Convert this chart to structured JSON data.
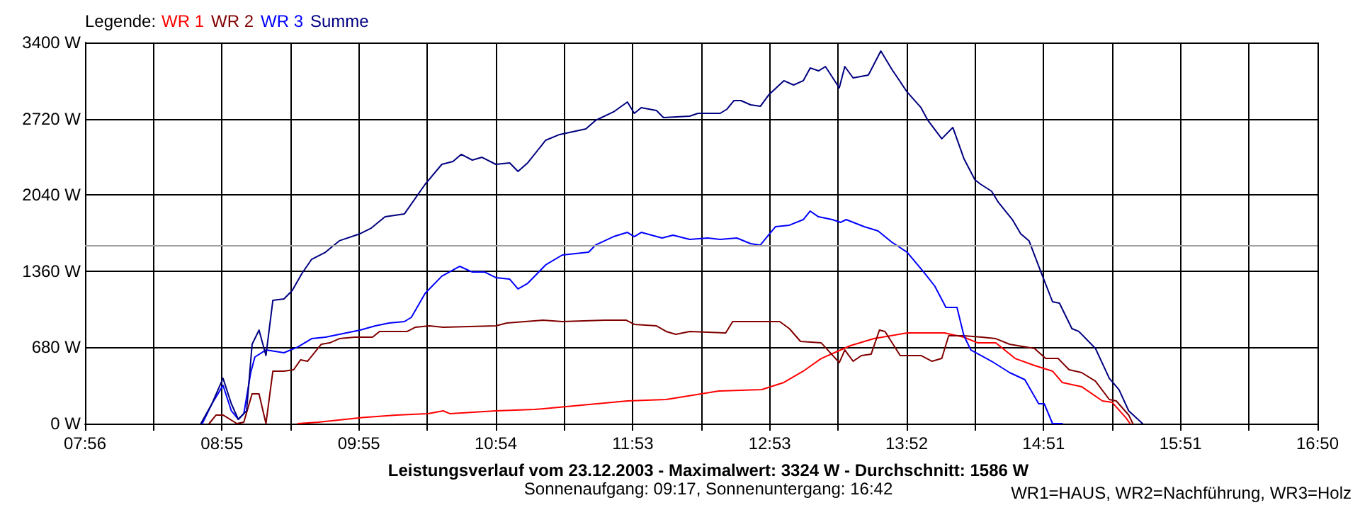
{
  "chart_data": {
    "type": "line",
    "title": "Leistungsverlauf vom 23.12.2003 - Maximalwert: 3324 W - Durchschnitt: 1586 W",
    "subtitle": "Sonnenaufgang: 09:17, Sonnenuntergang: 16:42",
    "annotations": [
      "WR1=HAUS, WR2=Nachführung, WR3=Holz"
    ],
    "legend_title": "Legende:",
    "legend": "top left",
    "grid": true,
    "marker": "none",
    "line_style": "solid",
    "xlim": [
      7.9333,
      16.8333
    ],
    "xticks": [
      {
        "value": 7.9333,
        "label": "07:56"
      },
      {
        "value": 8.4278,
        "label": null
      },
      {
        "value": 8.9222,
        "label": "08:55"
      },
      {
        "value": 9.4167,
        "label": null
      },
      {
        "value": 9.9111,
        "label": "09:55"
      },
      {
        "value": 10.4056,
        "label": null
      },
      {
        "value": 10.9,
        "label": "10:54"
      },
      {
        "value": 11.3944,
        "label": null
      },
      {
        "value": 11.8889,
        "label": "11:53"
      },
      {
        "value": 12.3833,
        "label": null
      },
      {
        "value": 12.8778,
        "label": "12:53"
      },
      {
        "value": 13.3722,
        "label": null
      },
      {
        "value": 13.8667,
        "label": "13:52"
      },
      {
        "value": 14.3611,
        "label": null
      },
      {
        "value": 14.8556,
        "label": "14:51"
      },
      {
        "value": 15.35,
        "label": null
      },
      {
        "value": 15.8444,
        "label": "15:51"
      },
      {
        "value": 16.3389,
        "label": null
      },
      {
        "value": 16.8333,
        "label": "16:50"
      }
    ],
    "ylim": [
      0,
      3400
    ],
    "yticks": [
      {
        "value": 0,
        "label": "0 W"
      },
      {
        "value": 680,
        "label": "680 W"
      },
      {
        "value": 1360,
        "label": "1360 W"
      },
      {
        "value": 2040,
        "label": "2040 W"
      },
      {
        "value": 2720,
        "label": "2720 W"
      },
      {
        "value": 3400,
        "label": "3400 W"
      }
    ],
    "ref_lines": [
      {
        "axis": "y",
        "value": 1586,
        "label": null,
        "color": "#a0a0a0"
      }
    ],
    "series": [
      {
        "name": "WR 1",
        "color": "#ff0000",
        "x": [
          9.47,
          9.62,
          9.91,
          10.18,
          10.41,
          10.52,
          10.57,
          10.9,
          11.18,
          11.41,
          11.85,
          12.13,
          12.51,
          12.82,
          12.98,
          13.12,
          13.25,
          13.39,
          13.46,
          13.63,
          13.87,
          14.14,
          14.28,
          14.38,
          14.51,
          14.65,
          14.79,
          14.92,
          14.99,
          15.13,
          15.28,
          15.35,
          15.45,
          15.48
        ],
        "values": [
          0,
          13,
          51,
          76,
          88,
          114,
          88,
          114,
          126,
          152,
          202,
          215,
          291,
          303,
          367,
          468,
          581,
          657,
          695,
          758,
          809,
          809,
          771,
          720,
          720,
          581,
          518,
          468,
          367,
          329,
          202,
          190,
          51,
          0
        ]
      },
      {
        "name": "WR 2",
        "color": "#800000",
        "x": [
          8.83,
          8.88,
          8.93,
          9.03,
          9.08,
          9.14,
          9.19,
          9.24,
          9.29,
          9.37,
          9.44,
          9.49,
          9.54,
          9.64,
          9.7,
          9.77,
          9.88,
          10.01,
          10.06,
          10.26,
          10.32,
          10.42,
          10.52,
          10.9,
          10.98,
          11.11,
          11.24,
          11.38,
          11.69,
          11.84,
          11.9,
          12.06,
          12.13,
          12.2,
          12.3,
          12.56,
          12.61,
          12.95,
          13.02,
          13.1,
          13.25,
          13.38,
          13.42,
          13.48,
          13.54,
          13.61,
          13.67,
          13.71,
          13.82,
          13.97,
          14.05,
          14.12,
          14.17,
          14.28,
          14.41,
          14.51,
          14.61,
          14.79,
          14.87,
          14.96,
          15.04,
          15.13,
          15.23,
          15.33,
          15.38,
          15.47,
          15.5
        ],
        "values": [
          0,
          76,
          76,
          0,
          13,
          265,
          265,
          0,
          468,
          468,
          480,
          569,
          556,
          708,
          720,
          758,
          771,
          771,
          822,
          822,
          860,
          872,
          860,
          872,
          897,
          910,
          923,
          910,
          923,
          923,
          885,
          872,
          822,
          796,
          822,
          809,
          910,
          910,
          847,
          733,
          720,
          544,
          657,
          556,
          607,
          619,
          834,
          822,
          607,
          607,
          556,
          581,
          784,
          784,
          771,
          758,
          708,
          670,
          581,
          581,
          480,
          455,
          379,
          215,
          202,
          76,
          0
        ]
      },
      {
        "name": "WR 3",
        "color": "#0000ff",
        "x": [
          8.78,
          8.85,
          8.93,
          8.99,
          9.04,
          9.08,
          9.13,
          9.16,
          9.24,
          9.37,
          9.47,
          9.57,
          9.67,
          9.77,
          9.92,
          10.03,
          10.13,
          10.24,
          10.29,
          10.39,
          10.51,
          10.64,
          10.73,
          10.82,
          10.9,
          11.0,
          11.06,
          11.13,
          11.26,
          11.38,
          11.57,
          11.62,
          11.75,
          11.85,
          11.9,
          11.95,
          12.1,
          12.18,
          12.3,
          12.43,
          12.52,
          12.64,
          12.74,
          12.81,
          12.92,
          13.02,
          13.12,
          13.17,
          13.23,
          13.33,
          13.39,
          13.43,
          13.56,
          13.66,
          13.76,
          13.87,
          13.99,
          14.07,
          14.15,
          14.23,
          14.28,
          14.33,
          14.48,
          14.61,
          14.72,
          14.82,
          14.86,
          14.92,
          14.99
        ],
        "values": [
          0,
          177,
          341,
          114,
          38,
          88,
          455,
          594,
          657,
          632,
          683,
          758,
          771,
          796,
          834,
          872,
          897,
          910,
          948,
          1163,
          1315,
          1403,
          1352,
          1352,
          1302,
          1289,
          1201,
          1251,
          1416,
          1504,
          1529,
          1593,
          1668,
          1706,
          1668,
          1706,
          1656,
          1681,
          1643,
          1656,
          1643,
          1656,
          1605,
          1593,
          1757,
          1770,
          1820,
          1896,
          1845,
          1820,
          1795,
          1820,
          1757,
          1719,
          1618,
          1529,
          1352,
          1226,
          1036,
          1036,
          784,
          657,
          556,
          455,
          392,
          177,
          177,
          0,
          0
        ]
      },
      {
        "name": "Summe",
        "color": "#000080",
        "x": [
          8.77,
          8.85,
          8.93,
          8.99,
          9.04,
          9.1,
          9.14,
          9.19,
          9.24,
          9.29,
          9.37,
          9.43,
          9.5,
          9.57,
          9.67,
          9.77,
          9.92,
          10.0,
          10.1,
          10.24,
          10.39,
          10.51,
          10.59,
          10.65,
          10.73,
          10.8,
          10.9,
          11.0,
          11.06,
          11.13,
          11.26,
          11.36,
          11.55,
          11.62,
          11.75,
          11.85,
          11.9,
          11.95,
          12.06,
          12.11,
          12.3,
          12.36,
          12.52,
          12.57,
          12.62,
          12.67,
          12.74,
          12.81,
          12.87,
          12.98,
          13.05,
          13.12,
          13.17,
          13.23,
          13.28,
          13.38,
          13.42,
          13.48,
          13.59,
          13.68,
          13.76,
          13.87,
          13.97,
          14.02,
          14.12,
          14.2,
          14.28,
          14.36,
          14.4,
          14.48,
          14.53,
          14.63,
          14.69,
          14.75,
          14.84,
          14.92,
          14.97,
          15.06,
          15.11,
          15.23,
          15.33,
          15.4,
          15.47,
          15.57
        ],
        "values": [
          0,
          177,
          404,
          177,
          38,
          114,
          708,
          834,
          607,
          1100,
          1112,
          1188,
          1340,
          1466,
          1529,
          1631,
          1694,
          1744,
          1845,
          1871,
          2136,
          2313,
          2338,
          2402,
          2351,
          2376,
          2313,
          2326,
          2250,
          2326,
          2528,
          2579,
          2629,
          2705,
          2781,
          2869,
          2768,
          2819,
          2793,
          2730,
          2743,
          2768,
          2768,
          2806,
          2882,
          2882,
          2844,
          2831,
          2932,
          3059,
          3021,
          3059,
          3173,
          3147,
          3185,
          2996,
          3185,
          3084,
          3109,
          3324,
          3160,
          2958,
          2819,
          2705,
          2541,
          2642,
          2364,
          2174,
          2136,
          2073,
          1972,
          1820,
          1694,
          1631,
          1340,
          1087,
          1074,
          847,
          822,
          670,
          404,
          303,
          114,
          0
        ]
      }
    ]
  }
}
